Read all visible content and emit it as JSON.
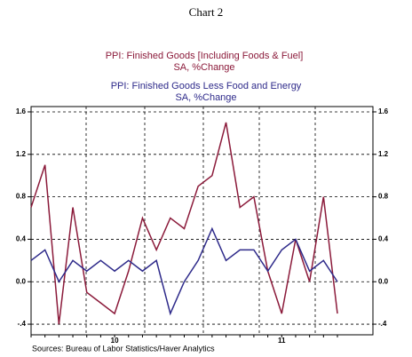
{
  "chart_data": {
    "type": "line",
    "title": "Chart 2",
    "subtitles": [
      {
        "lines": [
          "PPI: Finished Goods [Including Foods & Fuel]",
          "SA, %Change"
        ],
        "color": "#8b1a3a"
      },
      {
        "lines": [
          "PPI: Finished Goods Less Food and Energy",
          "SA, %Change"
        ],
        "color": "#2e2a8a"
      }
    ],
    "categories": [
      null,
      null,
      null,
      null,
      null,
      null,
      "10",
      null,
      null,
      null,
      null,
      null,
      null,
      null,
      null,
      null,
      null,
      null,
      "11",
      null,
      null,
      null,
      null
    ],
    "series": [
      {
        "name": "PPI: Finished Goods [Including Foods & Fuel]",
        "color": "#8b1a3a",
        "values": [
          0.7,
          1.1,
          -0.4,
          0.7,
          -0.1,
          -0.2,
          -0.3,
          0.1,
          0.6,
          0.3,
          0.6,
          0.5,
          0.9,
          1.0,
          1.5,
          0.7,
          0.8,
          0.1,
          -0.3,
          0.4,
          0.0,
          0.8,
          -0.3
        ]
      },
      {
        "name": "PPI: Finished Goods Less Food and Energy",
        "color": "#2e2a8a",
        "values": [
          0.2,
          0.3,
          0.0,
          0.2,
          0.1,
          0.2,
          0.1,
          0.2,
          0.1,
          0.2,
          -0.3,
          0.0,
          0.2,
          0.5,
          0.2,
          0.3,
          0.3,
          0.1,
          0.3,
          0.4,
          0.1,
          0.2,
          0.0
        ]
      }
    ],
    "ylim": [
      -0.5,
      1.65
    ],
    "yticks": [
      {
        "value": -0.4,
        "label": "-.4"
      },
      {
        "value": 0,
        "label": "0.0"
      },
      0.4,
      0.8,
      1.2,
      1.6
    ],
    "grid": true,
    "source": "Sources:  Bureau of Labor Statistics/Haver Analytics"
  }
}
